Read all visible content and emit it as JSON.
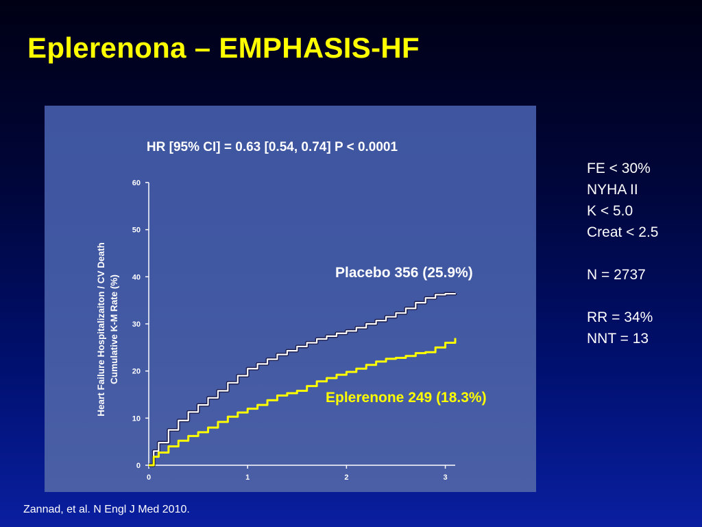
{
  "slide": {
    "title": "Eplerenona – EMPHASIS-HF",
    "citation": "Zannad, et al. N Engl J Med 2010."
  },
  "side_notes": {
    "line1": "FE < 30%",
    "line2": "NYHA II",
    "line3": "K < 5.0",
    "line4": "Creat < 2.5",
    "line5": "N = 2737",
    "line6": "RR = 34%",
    "line7": "NNT = 13"
  },
  "colors": {
    "title": "#ffff00",
    "panel": "#4057a2",
    "placebo": "#ffffff",
    "eplerenone": "#ffff00"
  },
  "chart_data": {
    "type": "line",
    "title": "HR [95%  CI] = 0.63 [0.54, 0.74] P < 0.0001",
    "xlabel": "",
    "ylabel_line1": "Heart Failure Hospitalizaiton / CV Death",
    "ylabel_line2": "Cumulative K-M Rate (%)",
    "xlim": [
      0,
      3.1
    ],
    "ylim": [
      0,
      60
    ],
    "x_ticks": [
      0,
      1,
      2,
      3
    ],
    "x_tick_labels": [
      "0",
      "1",
      "2",
      "3"
    ],
    "y_ticks": [
      0,
      10,
      20,
      30,
      40,
      50,
      60
    ],
    "y_tick_labels": [
      "0",
      "10",
      "20",
      "30",
      "40",
      "50",
      "60"
    ],
    "grid": false,
    "series": [
      {
        "name": "Placebo 356 (25.9%)",
        "color": "#ffffff",
        "x": [
          0,
          0.05,
          0.1,
          0.2,
          0.3,
          0.4,
          0.5,
          0.6,
          0.7,
          0.8,
          0.9,
          1.0,
          1.1,
          1.2,
          1.3,
          1.4,
          1.5,
          1.6,
          1.7,
          1.8,
          1.9,
          2.0,
          2.1,
          2.2,
          2.3,
          2.4,
          2.5,
          2.6,
          2.7,
          2.8,
          2.9,
          3.0,
          3.1
        ],
        "y": [
          0,
          3.0,
          4.8,
          7.5,
          9.5,
          11.3,
          12.8,
          14.3,
          15.8,
          17.5,
          19.0,
          20.5,
          21.5,
          22.5,
          23.5,
          24.3,
          25.2,
          26.0,
          26.8,
          27.4,
          28.0,
          28.5,
          29.2,
          30.0,
          30.7,
          31.5,
          32.3,
          33.3,
          34.5,
          35.5,
          36.2,
          36.4,
          36.5
        ]
      },
      {
        "name": "Eplerenone 249 (18.3%)",
        "color": "#ffff00",
        "x": [
          0,
          0.05,
          0.1,
          0.2,
          0.3,
          0.4,
          0.5,
          0.6,
          0.7,
          0.8,
          0.9,
          1.0,
          1.1,
          1.2,
          1.3,
          1.4,
          1.5,
          1.6,
          1.7,
          1.8,
          1.9,
          2.0,
          2.1,
          2.2,
          2.3,
          2.4,
          2.5,
          2.6,
          2.7,
          2.8,
          2.9,
          3.0,
          3.1
        ],
        "y": [
          0,
          1.8,
          2.7,
          4.0,
          5.2,
          6.2,
          7.0,
          8.0,
          9.2,
          10.3,
          11.2,
          12.0,
          12.8,
          13.8,
          14.8,
          15.3,
          15.8,
          16.8,
          17.8,
          18.5,
          19.2,
          19.8,
          20.5,
          21.3,
          22.0,
          22.6,
          22.8,
          23.2,
          23.8,
          24.0,
          25.0,
          26.0,
          27.0
        ]
      }
    ]
  }
}
